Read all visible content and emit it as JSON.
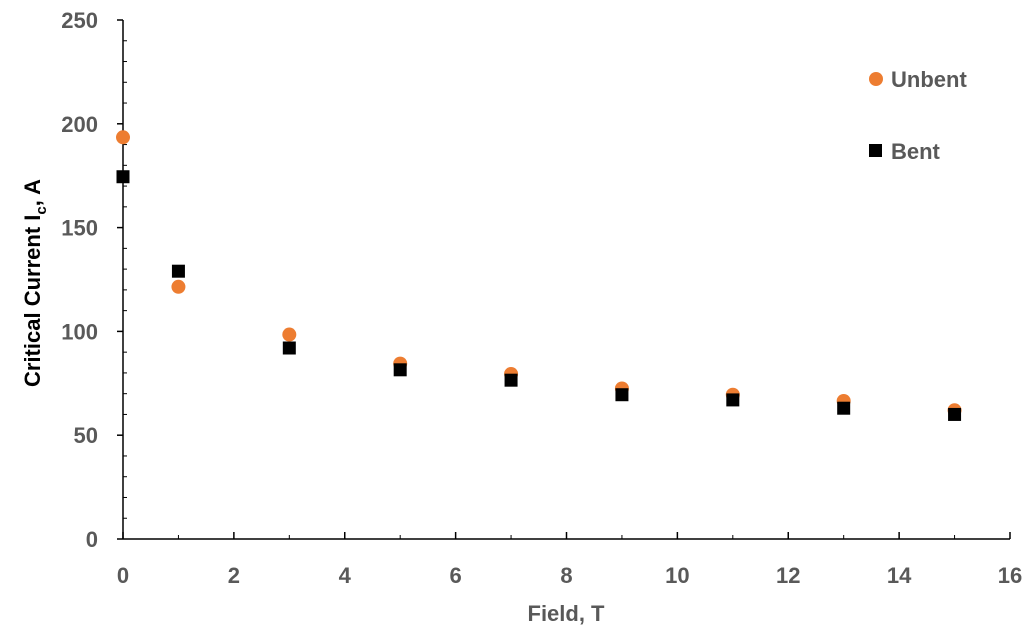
{
  "chart_data": {
    "type": "scatter",
    "title": "",
    "xlabel": "Field, T",
    "ylabel": {
      "main": "Critical Current I",
      "subscript": "c",
      "suffix": ", A"
    },
    "xlim": [
      0,
      16
    ],
    "ylim": [
      0,
      250
    ],
    "x_ticks": [
      0,
      2,
      4,
      6,
      8,
      10,
      12,
      14,
      16
    ],
    "y_ticks": [
      0,
      50,
      100,
      150,
      200,
      250
    ],
    "grid": false,
    "legend_position": "top-right",
    "series": [
      {
        "name": "Unbent",
        "marker": "circle",
        "color": "#ED7D31",
        "x": [
          0,
          1,
          3,
          5,
          7,
          9,
          11,
          13,
          15
        ],
        "y": [
          193.5,
          121.5,
          98.5,
          84.5,
          79.5,
          72.5,
          69.5,
          66.5,
          62
        ]
      },
      {
        "name": "Bent",
        "marker": "square",
        "color": "#000000",
        "x": [
          0,
          1,
          3,
          5,
          7,
          9,
          11,
          13,
          15
        ],
        "y": [
          174.5,
          129,
          92,
          81.5,
          76.5,
          69.5,
          67,
          63,
          60
        ]
      }
    ]
  }
}
